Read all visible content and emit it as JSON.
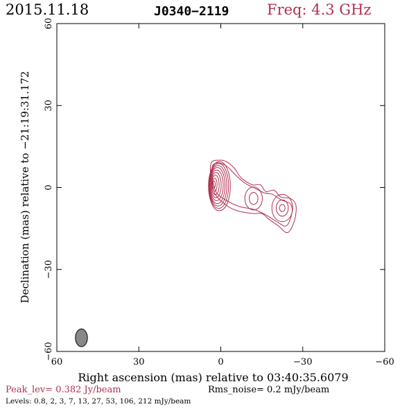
{
  "header": {
    "date": "2015.11.18",
    "source": "J0340−2119",
    "freq": "Freq: 4.3 GHz",
    "freq_color": "#b0304f"
  },
  "footer": {
    "peak": "Peak_lev=  0.382 Jy/beam",
    "rms": "Rms_noise=  0.2 mJy/beam",
    "levels": "Levels: 0.8,   2,   3,   7,  13,  27,  53, 106, 212 mJy/beam",
    "peak_color": "#b0304f"
  },
  "chart_data": {
    "type": "contour",
    "title": "J0340−2119",
    "xlabel": "Right ascension (mas) relative to 03:40:35.6079",
    "ylabel": "Declination (mas) relative to −21:19:31.172",
    "xlim": [
      60,
      -60
    ],
    "ylim": [
      -60,
      60
    ],
    "x_ticks": [
      60,
      30,
      0,
      -30,
      -60
    ],
    "y_ticks": [
      -60,
      -30,
      0,
      30,
      60
    ],
    "x_tick_labels": [
      "60",
      "30",
      "0",
      "−30",
      "−60"
    ],
    "y_tick_labels": [
      "−60",
      "−30",
      "0",
      "30",
      "60"
    ],
    "grid": false,
    "contour_color": "#b0304f",
    "contour_levels_mJy": [
      0.8,
      2,
      3,
      7,
      13,
      27,
      53,
      106,
      212
    ],
    "components": [
      {
        "name": "core",
        "x": 0.5,
        "y": 0.5,
        "rx": [
          4.0,
          3.6,
          3.2,
          2.8,
          2.4,
          1.9,
          1.4,
          0.9,
          0.5
        ],
        "ry": [
          9.0,
          8.2,
          7.4,
          6.6,
          5.6,
          4.6,
          3.6,
          2.4,
          1.3
        ]
      },
      {
        "name": "knot-1",
        "x": -12.0,
        "y": -4.0,
        "rx": [
          3.2,
          1.6
        ],
        "ry": [
          4.2,
          2.2
        ]
      },
      {
        "name": "knot-2",
        "x": -22.5,
        "y": -7.5,
        "rx": [
          3.8,
          2.2,
          1.0
        ],
        "ry": [
          5.0,
          3.0,
          1.3
        ]
      }
    ],
    "outer_contour": [
      [
        3.5,
        9.0
      ],
      [
        0.5,
        10.0
      ],
      [
        -2.0,
        9.5
      ],
      [
        -5.0,
        7.0
      ],
      [
        -7.5,
        3.5
      ],
      [
        -11.5,
        1.0
      ],
      [
        -14.5,
        1.0
      ],
      [
        -16.5,
        -1.5
      ],
      [
        -19.5,
        -1.0
      ],
      [
        -22.0,
        -3.5
      ],
      [
        -25.5,
        -4.0
      ],
      [
        -27.5,
        -6.5
      ],
      [
        -27.0,
        -12.0
      ],
      [
        -24.5,
        -16.5
      ],
      [
        -21.0,
        -14.0
      ],
      [
        -17.5,
        -11.5
      ],
      [
        -15.0,
        -9.5
      ],
      [
        -11.5,
        -9.5
      ],
      [
        -6.0,
        -8.5
      ],
      [
        -2.0,
        -6.5
      ],
      [
        2.0,
        -2.5
      ],
      [
        3.5,
        3.0
      ]
    ],
    "second_contour": [
      [
        3.0,
        8.0
      ],
      [
        0.5,
        9.0
      ],
      [
        -2.5,
        7.5
      ],
      [
        -5.5,
        4.5
      ],
      [
        -9.0,
        1.5
      ],
      [
        -13.0,
        -0.5
      ],
      [
        -16.0,
        -2.0
      ],
      [
        -19.0,
        -2.5
      ],
      [
        -22.0,
        -4.5
      ],
      [
        -25.5,
        -6.0
      ],
      [
        -26.0,
        -9.5
      ],
      [
        -24.0,
        -14.0
      ],
      [
        -20.5,
        -12.5
      ],
      [
        -16.5,
        -10.0
      ],
      [
        -12.0,
        -8.0
      ],
      [
        -7.0,
        -7.0
      ],
      [
        -2.5,
        -5.0
      ],
      [
        1.5,
        -2.0
      ],
      [
        3.0,
        3.0
      ]
    ],
    "beam": {
      "x": 51,
      "y": -55,
      "major_mas": 6.5,
      "minor_mas": 2.2,
      "pa_deg": 0
    }
  }
}
